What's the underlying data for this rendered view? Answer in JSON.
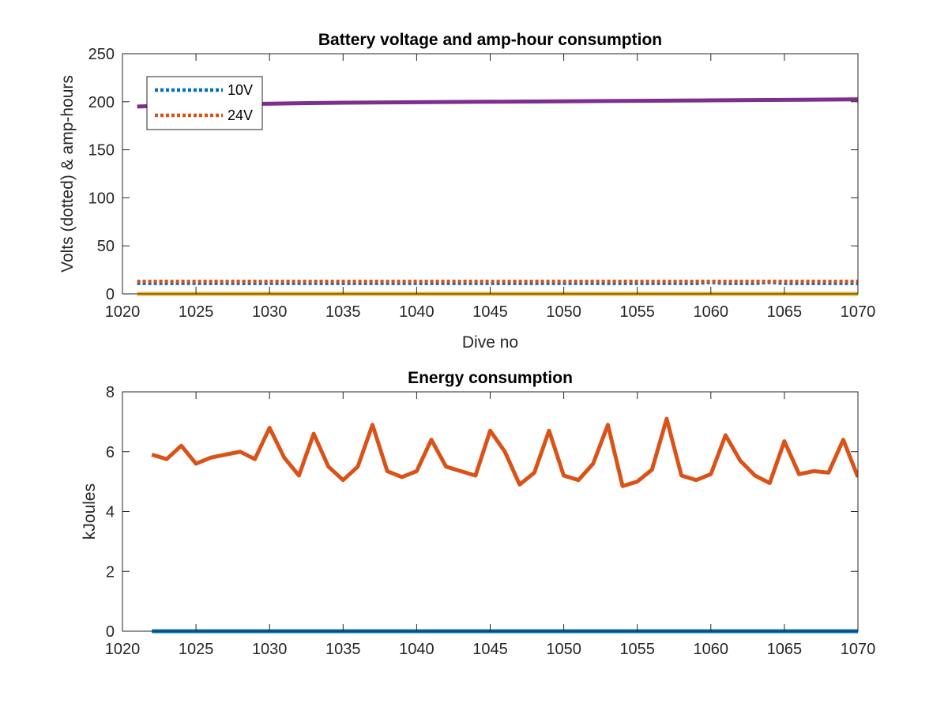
{
  "chart_data": [
    {
      "type": "line",
      "title": "Battery voltage and amp-hour consumption",
      "xlabel": "Dive no",
      "ylabel": "Volts (dotted) & amp-hours",
      "xlim": [
        1020,
        1070
      ],
      "ylim": [
        0,
        250
      ],
      "xticks": [
        1020,
        1025,
        1030,
        1035,
        1040,
        1045,
        1050,
        1055,
        1060,
        1065,
        1070
      ],
      "yticks": [
        0,
        50,
        100,
        150,
        200,
        250
      ],
      "grid": false,
      "legend": {
        "placement": "top-left"
      },
      "series": [
        {
          "name": "10V",
          "style": "dotted",
          "color": "#0072BD",
          "in_legend": true,
          "x": [
            1021,
            1025,
            1030,
            1035,
            1040,
            1045,
            1050,
            1055,
            1059,
            1060,
            1061,
            1063,
            1064,
            1065,
            1070
          ],
          "y": [
            11,
            11,
            11,
            11,
            11,
            11,
            11,
            11,
            11,
            12,
            11,
            11,
            12,
            11,
            11
          ]
        },
        {
          "name": "24V",
          "style": "dotted",
          "color": "#D95319",
          "in_legend": true,
          "x": [
            1021,
            1070
          ],
          "y": [
            13,
            13
          ]
        },
        {
          "style": "solid",
          "color": "#EDB120",
          "in_legend": false,
          "x": [
            1021,
            1070
          ],
          "y": [
            0,
            0
          ]
        },
        {
          "style": "solid",
          "color": "#7E2F8E",
          "in_legend": false,
          "x": [
            1021,
            1025,
            1030,
            1035,
            1040,
            1045,
            1050,
            1055,
            1060,
            1065,
            1070
          ],
          "y": [
            195,
            197,
            198,
            199,
            199.5,
            200,
            200.5,
            201,
            201.5,
            202,
            202.5
          ]
        }
      ]
    },
    {
      "type": "line",
      "title": "Energy consumption",
      "xlabel": "",
      "ylabel": "kJoules",
      "xlim": [
        1020,
        1070
      ],
      "ylim": [
        0,
        8
      ],
      "xticks": [
        1020,
        1025,
        1030,
        1035,
        1040,
        1045,
        1050,
        1055,
        1060,
        1065,
        1070
      ],
      "yticks": [
        0,
        2,
        4,
        6,
        8
      ],
      "grid": false,
      "series": [
        {
          "style": "solid",
          "color": "#D95319",
          "x": [
            1022,
            1023,
            1024,
            1025,
            1026,
            1027,
            1028,
            1029,
            1030,
            1031,
            1032,
            1033,
            1034,
            1035,
            1036,
            1037,
            1038,
            1039,
            1040,
            1041,
            1042,
            1043,
            1044,
            1045,
            1046,
            1047,
            1048,
            1049,
            1050,
            1051,
            1052,
            1053,
            1054,
            1055,
            1056,
            1057,
            1058,
            1059,
            1060,
            1061,
            1062,
            1063,
            1064,
            1065,
            1066,
            1067,
            1068,
            1069,
            1070
          ],
          "y": [
            5.9,
            5.75,
            6.2,
            5.6,
            5.8,
            5.9,
            6.0,
            5.75,
            6.8,
            5.8,
            5.2,
            6.6,
            5.5,
            5.05,
            5.5,
            6.9,
            5.35,
            5.15,
            5.35,
            6.4,
            5.5,
            5.35,
            5.2,
            6.7,
            6.0,
            4.9,
            5.3,
            6.7,
            5.2,
            5.05,
            5.6,
            6.9,
            4.85,
            5.0,
            5.4,
            7.1,
            5.2,
            5.05,
            5.25,
            6.55,
            5.7,
            5.2,
            4.95,
            6.35,
            5.25,
            5.35,
            5.3,
            6.4,
            5.15
          ]
        },
        {
          "style": "solid",
          "color": "#0072BD",
          "x": [
            1022,
            1070
          ],
          "y": [
            0,
            0
          ]
        }
      ]
    }
  ]
}
